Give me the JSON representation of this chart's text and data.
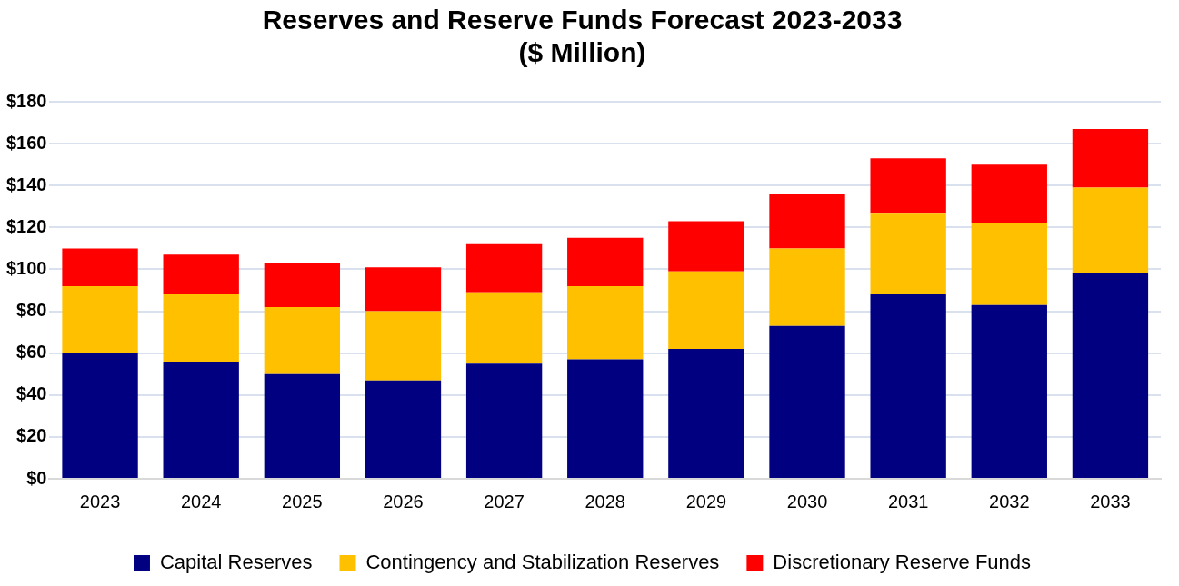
{
  "chart_data": {
    "type": "bar",
    "title": [
      "Reserves and Reserve Funds Forecast 2023-2033",
      "($ Million)"
    ],
    "stacked": true,
    "categories": [
      "2023",
      "2024",
      "2025",
      "2026",
      "2027",
      "2028",
      "2029",
      "2030",
      "2031",
      "2032",
      "2033"
    ],
    "series": [
      {
        "name": "Capital Reserves",
        "color": "#000080",
        "values": [
          60,
          56,
          50,
          47,
          55,
          57,
          62,
          73,
          88,
          83,
          98
        ]
      },
      {
        "name": "Contingency and Stabilization Reserves",
        "color": "#ffc000",
        "values": [
          32,
          32,
          32,
          33,
          34,
          35,
          37,
          37,
          39,
          39,
          41
        ]
      },
      {
        "name": "Discretionary Reserve Funds",
        "color": "#ff0000",
        "values": [
          18,
          19,
          21,
          21,
          23,
          23,
          24,
          26,
          26,
          28,
          28
        ]
      }
    ],
    "ylim": [
      0,
      180
    ],
    "yticks": [
      {
        "value": 0,
        "label": "$0"
      },
      {
        "value": 20,
        "label": "$20"
      },
      {
        "value": 40,
        "label": "$40"
      },
      {
        "value": 60,
        "label": "$60"
      },
      {
        "value": 80,
        "label": "$80"
      },
      {
        "value": 100,
        "label": "$100"
      },
      {
        "value": 120,
        "label": "$120"
      },
      {
        "value": 140,
        "label": "$140"
      },
      {
        "value": 160,
        "label": "$160"
      },
      {
        "value": 180,
        "label": "$180"
      }
    ],
    "grid": "y",
    "legend": "bottom"
  }
}
